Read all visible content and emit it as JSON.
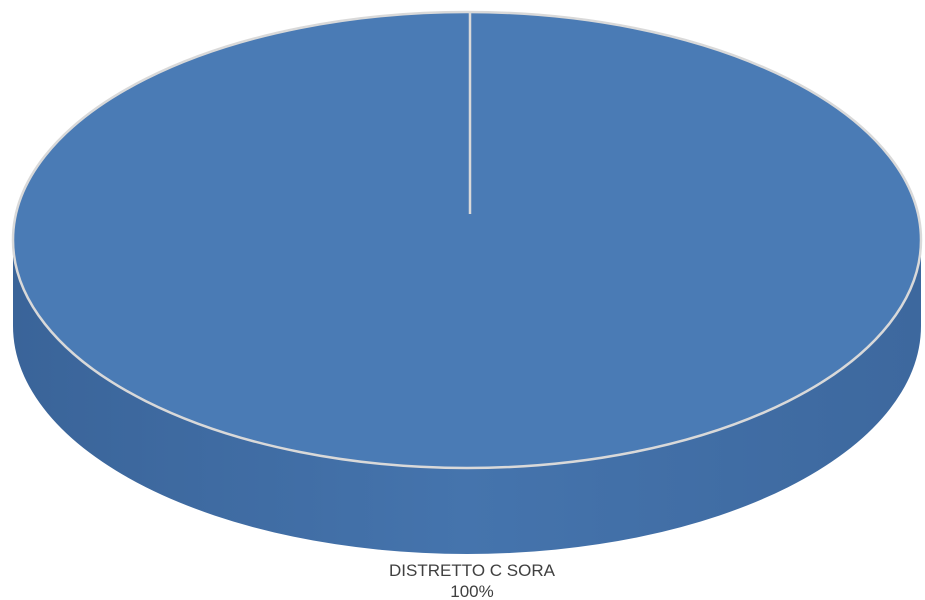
{
  "chart_data": {
    "type": "pie",
    "style": "3d",
    "title": "",
    "slices": [
      {
        "label": "DISTRETTO C SORA",
        "value": 100,
        "percent_label": "100%",
        "color": "#4a7bb5"
      }
    ],
    "legend": "none",
    "colors": {
      "top": "#4a7bb5",
      "side": "#416ea4",
      "side_dark": "#3a6499",
      "edge": "#d9d9d9"
    }
  }
}
